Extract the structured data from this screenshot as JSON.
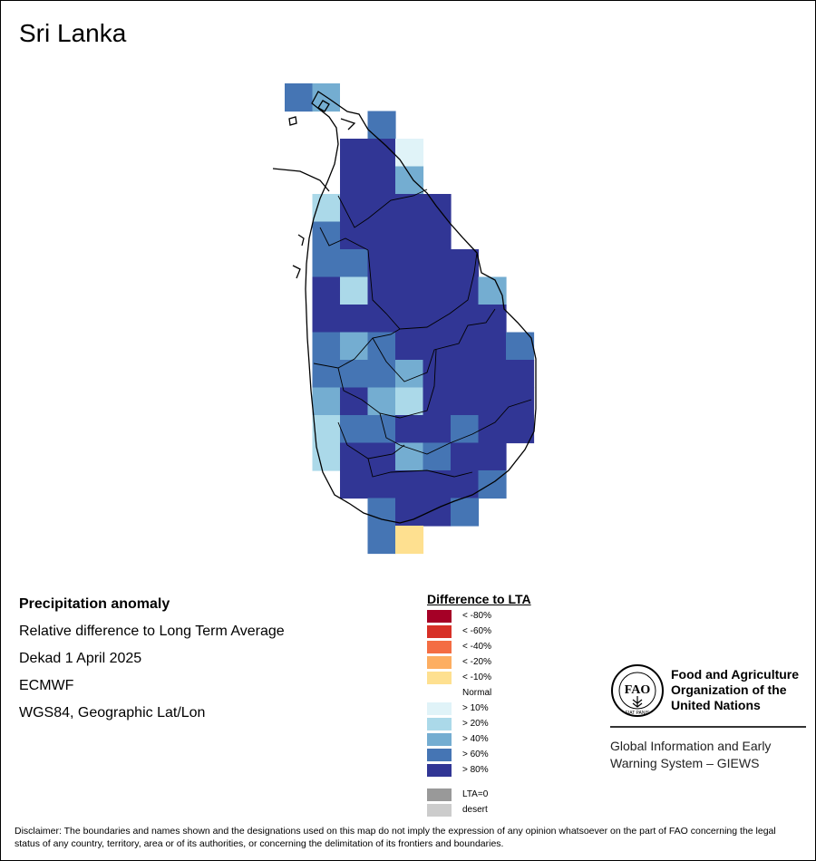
{
  "map": {
    "title": "Sri Lanka"
  },
  "info": {
    "product": "Precipitation anomaly",
    "description": "Relative difference to Long Term Average",
    "period": "Dekad 1 April 2025",
    "model": "ECMWF",
    "projection": "WGS84, Geographic Lat/Lon"
  },
  "legend": {
    "title": "Difference to LTA",
    "items": [
      {
        "label": "< -80%",
        "color": "#a50026"
      },
      {
        "label": "< -60%",
        "color": "#d73027"
      },
      {
        "label": "< -40%",
        "color": "#f46d43"
      },
      {
        "label": "< -20%",
        "color": "#fdae61"
      },
      {
        "label": "< -10%",
        "color": "#fee090"
      },
      {
        "label": "Normal",
        "color": "#ffffff"
      },
      {
        "label": "> 10%",
        "color": "#e0f3f8"
      },
      {
        "label": "> 20%",
        "color": "#abd9e9"
      },
      {
        "label": "> 40%",
        "color": "#74add1"
      },
      {
        "label": "> 60%",
        "color": "#4575b4"
      },
      {
        "label": "> 80%",
        "color": "#313695"
      }
    ],
    "extra": [
      {
        "label": "LTA=0",
        "color": "#999999"
      },
      {
        "label": "desert",
        "color": "#cccccc"
      }
    ]
  },
  "logo": {
    "org_name": "Food and Agriculture\nOrganization of the\nUnited Nations",
    "emblem_letters": "FAO",
    "emblem_motto": "FIAT PANIS",
    "system_name": "Global Information and Early\nWarning System – GIEWS"
  },
  "disclaimer": "Disclaimer: The boundaries and names shown and the designations used on this map do not imply the expression of any opinion whatsoever on the part of FAO concerning the legal status of any country, territory, area or of its authorities, or concerning the delimitation of its frontiers and boundaries.",
  "grid": {
    "classes": {
      "A": "#313695",
      "B": "#4575b4",
      "C": "#74add1",
      "D": "#abd9e9",
      "E": "#e0f3f8",
      "Y": "#fee090",
      "N": "#ffffff"
    },
    "rows": [
      "BCN.......",
      "..NB......",
      "..AAE.....",
      "..AAC.....",
      ".DAAAA....",
      ".BAAAA....",
      ".BBAAAA...",
      ".ADAAAAC..",
      ".AAAAAAA..",
      ".BCBAAAAB.",
      ".BBBCAAAA.",
      ".CACDAAAA.",
      ".DBBAABAA.",
      ".DAACBAA..",
      "..AAAAAB..",
      "...BAAB...",
      "...BY....."
    ]
  }
}
